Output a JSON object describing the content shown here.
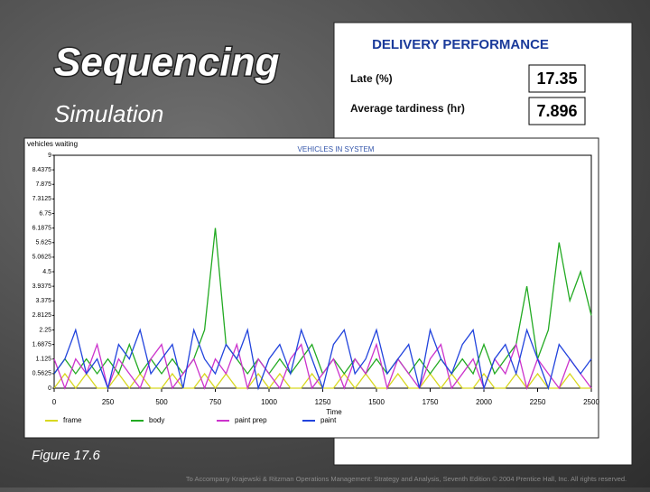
{
  "title": "Sequencing",
  "subtitle": "Simulation",
  "figure_label": "Figure 17.6",
  "footer": "To Accompany Krajewski & Ritzman Operations Management: Strategy and Analysis, Seventh Edition © 2004 Prentice Hall, Inc. All rights reserved.",
  "delivery_panel": {
    "title": "DELIVERY PERFORMANCE",
    "metrics": [
      {
        "label": "Late (%)",
        "value": "17.35"
      },
      {
        "label": "Average tardiness (hr)",
        "value": "7.896"
      }
    ]
  },
  "chart_data": {
    "type": "line",
    "title": "VEHICLES IN SYSTEM",
    "y_label": "vehicles waiting",
    "x_label": "Time",
    "xlim": [
      0,
      2500
    ],
    "ylim": [
      0,
      9
    ],
    "xticks": [
      0,
      250,
      500,
      750,
      1000,
      1250,
      1500,
      1750,
      2000,
      2250,
      2500
    ],
    "yticks": [
      0,
      0.5625,
      1.125,
      1.6875,
      2.25,
      2.8125,
      3.375,
      3.9375,
      4.5,
      5.0625,
      5.625,
      6.1875,
      6.75,
      7.3125,
      7.875,
      8.4375,
      9
    ],
    "x": [
      0,
      50,
      100,
      150,
      200,
      250,
      300,
      350,
      400,
      450,
      500,
      550,
      600,
      650,
      700,
      750,
      800,
      850,
      900,
      950,
      1000,
      1050,
      1100,
      1150,
      1200,
      1250,
      1300,
      1350,
      1400,
      1450,
      1500,
      1550,
      1600,
      1650,
      1700,
      1750,
      1800,
      1850,
      1900,
      1950,
      2000,
      2050,
      2100,
      2150,
      2200,
      2250,
      2300,
      2350,
      2400,
      2450,
      2500
    ],
    "series": [
      {
        "name": "frame",
        "color": "#d8d820",
        "values": [
          0,
          0.56,
          0,
          0.56,
          0,
          0,
          0.56,
          0,
          0.56,
          0,
          0,
          0.56,
          0,
          0,
          0.56,
          0,
          0.56,
          0,
          0,
          0.56,
          0,
          0.56,
          0,
          0,
          0.56,
          0,
          0,
          0.56,
          0,
          0.56,
          0,
          0,
          0.56,
          0,
          0,
          0.56,
          0,
          0.56,
          0,
          0,
          0.56,
          0,
          0,
          0.56,
          0,
          0.56,
          0,
          0,
          0.56,
          0,
          0
        ]
      },
      {
        "name": "body",
        "color": "#22aa22",
        "values": [
          0.56,
          1.13,
          0.56,
          1.13,
          0.56,
          1.13,
          0.56,
          1.69,
          0.56,
          1.13,
          0.56,
          1.13,
          0.56,
          1.13,
          2.25,
          6.19,
          1.69,
          1.13,
          0.56,
          1.13,
          0.56,
          1.13,
          0.56,
          1.13,
          1.69,
          0.56,
          1.13,
          0.56,
          1.13,
          0.56,
          1.13,
          0.56,
          1.13,
          0.56,
          1.13,
          0.56,
          1.13,
          0.56,
          1.13,
          0.56,
          1.69,
          0.56,
          1.13,
          1.69,
          3.94,
          1.13,
          2.25,
          5.63,
          3.38,
          4.5,
          2.81
        ]
      },
      {
        "name": "paint prep",
        "color": "#cc33cc",
        "values": [
          1.13,
          0,
          1.13,
          0.56,
          1.69,
          0,
          1.13,
          0.56,
          0,
          1.13,
          1.69,
          0,
          0.56,
          1.13,
          0,
          1.13,
          0.56,
          1.69,
          0,
          1.13,
          0.56,
          0,
          1.13,
          1.69,
          0,
          0.56,
          1.13,
          0,
          1.13,
          0.56,
          1.69,
          0,
          1.13,
          0.56,
          0,
          1.13,
          1.69,
          0,
          0.56,
          1.13,
          0,
          1.13,
          0.56,
          1.69,
          0,
          1.13,
          0.56,
          0,
          1.13,
          0.56,
          0
        ]
      },
      {
        "name": "paint",
        "color": "#2244dd",
        "values": [
          0.56,
          1.13,
          2.25,
          0.56,
          1.13,
          0,
          1.69,
          1.13,
          2.25,
          0.56,
          1.13,
          1.69,
          0,
          2.25,
          1.13,
          0.56,
          1.69,
          1.13,
          2.25,
          0,
          1.13,
          1.69,
          0.56,
          2.25,
          1.13,
          0,
          1.69,
          2.25,
          0.56,
          1.13,
          2.25,
          0.56,
          1.13,
          1.69,
          0,
          2.25,
          1.13,
          0.56,
          1.69,
          2.25,
          0,
          1.13,
          1.69,
          0.56,
          2.25,
          1.13,
          0,
          1.69,
          1.13,
          0.56,
          1.13
        ]
      }
    ]
  }
}
